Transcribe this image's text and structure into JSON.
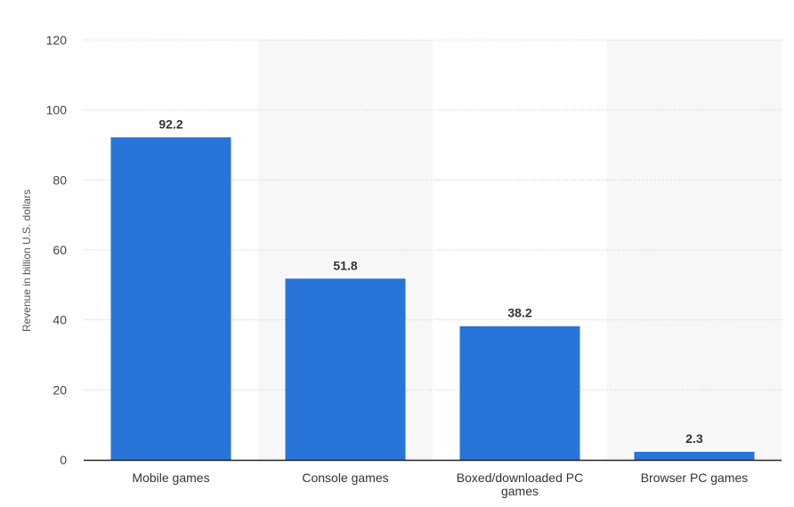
{
  "chart_data": {
    "type": "bar",
    "categories": [
      [
        "Mobile games"
      ],
      [
        "Console games"
      ],
      [
        "Boxed/downloaded PC",
        "games"
      ],
      [
        "Browser PC games"
      ]
    ],
    "values": [
      92.2,
      51.8,
      38.2,
      2.3
    ],
    "value_labels": [
      "92.2",
      "51.8",
      "38.2",
      "2.3"
    ],
    "title": "",
    "xlabel": "",
    "ylabel": "Revenue in billion U.S. dollars",
    "ylim": [
      0,
      120
    ],
    "yticks": [
      0,
      20,
      40,
      60,
      80,
      100,
      120
    ],
    "grid": true,
    "bar_color": "#2874d9",
    "alt_band_color": "#f7f7f7"
  }
}
